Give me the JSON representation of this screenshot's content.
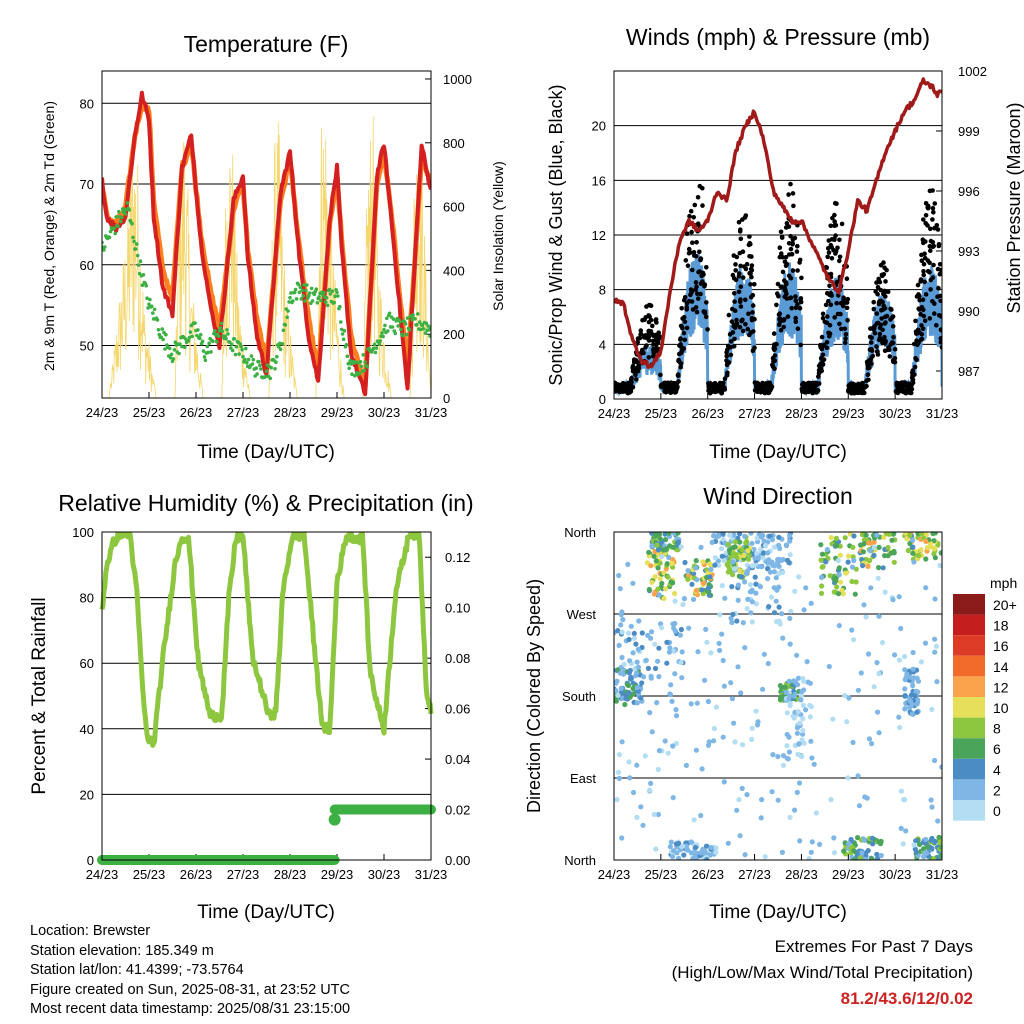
{
  "chart_data": [
    {
      "type": "line",
      "title": "Temperature (F)",
      "xlabel": "Time (Day/UTC)",
      "ylabel": "2m & 9m T (Red, Orange) & 2m Td (Green)",
      "y2label": "Solar Insolation (Yellow)",
      "x_ticks": [
        "24/23",
        "25/23",
        "26/23",
        "27/23",
        "28/23",
        "29/23",
        "30/23",
        "31/23"
      ],
      "xlim": [
        0,
        7
      ],
      "ylim": [
        43.5,
        84
      ],
      "y_ticks": [
        50,
        60,
        70,
        80
      ],
      "y2lim": [
        0,
        1025
      ],
      "y2_ticks": [
        0,
        200,
        400,
        600,
        800,
        1000
      ],
      "grid": "horizontal",
      "series": [
        {
          "key": "t9m",
          "color": "#ff7f1e",
          "x": [
            0,
            0.1,
            0.3,
            0.5,
            0.7,
            0.85,
            1.0,
            1.1,
            1.3,
            1.5,
            1.7,
            1.9,
            2.1,
            2.3,
            2.5,
            2.8,
            3.0,
            3.1,
            3.3,
            3.5,
            3.8,
            4.0,
            4.2,
            4.4,
            4.6,
            4.85,
            5.0,
            5.1,
            5.3,
            5.6,
            5.85,
            6.0,
            6.2,
            6.5,
            6.8,
            7.0
          ],
          "y": [
            70,
            66,
            65,
            67,
            76,
            80,
            79,
            68,
            59,
            56,
            72,
            75,
            64,
            57,
            52,
            67,
            70,
            62,
            53,
            48,
            68,
            73,
            62,
            53,
            47,
            65,
            71,
            63,
            51,
            45,
            70,
            74,
            64,
            47,
            73,
            70
          ]
        },
        {
          "key": "t2m",
          "color": "#d42020",
          "x": [
            0,
            0.1,
            0.3,
            0.5,
            0.7,
            0.85,
            1.0,
            1.1,
            1.3,
            1.5,
            1.7,
            1.9,
            2.1,
            2.3,
            2.5,
            2.8,
            3.0,
            3.1,
            3.3,
            3.5,
            3.8,
            4.0,
            4.2,
            4.4,
            4.6,
            4.85,
            5.0,
            5.1,
            5.3,
            5.6,
            5.85,
            6.0,
            6.2,
            6.5,
            6.8,
            7.0
          ],
          "y": [
            70.5,
            66,
            64.5,
            66,
            76,
            81,
            78,
            66,
            57,
            54,
            72,
            76,
            63,
            55,
            50,
            68,
            71,
            61,
            51,
            46.5,
            69,
            74,
            61,
            51,
            45.5,
            66,
            72,
            62,
            49,
            44,
            71,
            75,
            63,
            44.5,
            75,
            69
          ]
        },
        {
          "key": "td2m",
          "color": "#3cb043",
          "x": [
            0,
            0.2,
            0.4,
            0.55,
            0.8,
            1.0,
            1.1,
            1.3,
            1.5,
            1.8,
            2.0,
            2.2,
            2.5,
            2.8,
            3.0,
            3.3,
            3.6,
            3.8,
            4.0,
            4.2,
            4.5,
            4.8,
            5.0,
            5.3,
            5.6,
            5.9,
            6.1,
            6.4,
            6.7,
            7.0
          ],
          "y": [
            62,
            64,
            66,
            67,
            60,
            55,
            54,
            51,
            49,
            51,
            52,
            49,
            52,
            50,
            49,
            47,
            47,
            50,
            56,
            57,
            56,
            56,
            56,
            47,
            48,
            51,
            53,
            52,
            53,
            52
          ]
        },
        {
          "key": "solar",
          "color": "#f5d76e",
          "axis": "y2",
          "x": [
            0,
            0.15,
            0.55,
            0.65,
            0.75,
            0.9,
            1.15,
            1.55,
            1.65,
            1.75,
            1.9,
            2.15,
            2.55,
            2.65,
            2.75,
            2.9,
            3.15,
            3.55,
            3.65,
            3.75,
            3.9,
            4.15,
            4.55,
            4.65,
            4.75,
            4.9,
            5.15,
            5.55,
            5.65,
            5.75,
            5.9,
            6.15,
            6.55,
            6.65,
            6.75,
            6.9,
            7.0
          ],
          "y": [
            0,
            0,
            600,
            950,
            800,
            300,
            0,
            0,
            750,
            950,
            400,
            0,
            0,
            820,
            930,
            350,
            0,
            0,
            780,
            900,
            380,
            0,
            0,
            900,
            1000,
            500,
            0,
            0,
            750,
            960,
            420,
            0,
            0,
            820,
            940,
            400,
            0
          ]
        }
      ]
    },
    {
      "type": "line",
      "title": "Winds (mph) & Pressure (mb)",
      "xlabel": "Time (Day/UTC)",
      "ylabel": "Sonic/Prop Wind & Gust (Blue, Black)",
      "y2label": "Station Pressure (Maroon)",
      "x_ticks": [
        "24/23",
        "25/23",
        "26/23",
        "27/23",
        "28/23",
        "29/23",
        "30/23",
        "31/23"
      ],
      "xlim": [
        0,
        7
      ],
      "ylim": [
        0,
        24
      ],
      "y_ticks": [
        0,
        4,
        8,
        12,
        16,
        20
      ],
      "y2lim": [
        985.6,
        1002
      ],
      "y2_ticks": [
        987,
        990,
        993,
        996,
        999,
        1002
      ],
      "grid": "horizontal",
      "wind_daily_peak": [
        4,
        11,
        10,
        10,
        9,
        8,
        10,
        10
      ],
      "gust_daily_peak": [
        7,
        18,
        14,
        16,
        15,
        10,
        16,
        15
      ],
      "series": [
        {
          "key": "pressure",
          "color": "#a01a1a",
          "axis": "y2",
          "x": [
            0,
            0.2,
            0.4,
            0.6,
            0.8,
            1.0,
            1.2,
            1.4,
            1.6,
            1.8,
            2.0,
            2.2,
            2.4,
            2.6,
            2.8,
            3.0,
            3.2,
            3.4,
            3.6,
            3.8,
            4.0,
            4.2,
            4.4,
            4.6,
            4.8,
            5.0,
            5.2,
            5.4,
            5.6,
            5.8,
            6.0,
            6.2,
            6.4,
            6.6,
            6.8,
            6.9,
            7.0
          ],
          "y": [
            990.5,
            990.4,
            988.5,
            987.5,
            987.2,
            988,
            991,
            993.5,
            994.5,
            994,
            994.5,
            996,
            995.5,
            998,
            999.2,
            1000,
            998.5,
            996,
            995.2,
            994.5,
            994.5,
            993.5,
            992.5,
            991.5,
            991,
            993,
            995.5,
            995,
            996.5,
            998,
            999,
            1000,
            1000.5,
            1001.5,
            1001.2,
            1000.8,
            1001
          ]
        }
      ]
    },
    {
      "type": "line",
      "title": "Relative Humidity (%) & Precipitation (in)",
      "xlabel": "Time (Day/UTC)",
      "ylabel": "Percent & Total Rainfall",
      "x_ticks": [
        "24/23",
        "25/23",
        "26/23",
        "27/23",
        "28/23",
        "29/23",
        "30/23",
        "31/23"
      ],
      "xlim": [
        0,
        7
      ],
      "ylim": [
        0,
        100
      ],
      "y_ticks": [
        0,
        20,
        40,
        60,
        80,
        100
      ],
      "y2lim": [
        0,
        0.13
      ],
      "y2_ticks": [
        "0.00",
        "0.02",
        "0.04",
        "0.06",
        "0.08",
        "0.10",
        "0.12"
      ],
      "grid": "horizontal",
      "series": [
        {
          "key": "rh",
          "color": "#8dc63f",
          "x": [
            0,
            0.1,
            0.25,
            0.4,
            0.6,
            0.75,
            0.85,
            0.95,
            1.1,
            1.3,
            1.55,
            1.7,
            1.85,
            2.05,
            2.3,
            2.55,
            2.7,
            2.85,
            3.0,
            3.2,
            3.55,
            3.7,
            3.85,
            4.05,
            4.3,
            4.55,
            4.7,
            4.85,
            5.0,
            5.2,
            5.55,
            5.7,
            5.85,
            6.0,
            6.25,
            6.55,
            6.75,
            6.9,
            7.0
          ],
          "y": [
            76,
            90,
            97,
            100,
            99,
            80,
            55,
            38,
            35,
            62,
            90,
            99,
            97,
            60,
            44,
            44,
            80,
            98,
            99,
            62,
            44,
            45,
            82,
            99,
            99,
            60,
            40,
            40,
            85,
            99,
            98,
            58,
            48,
            40,
            82,
            100,
            99,
            52,
            46
          ]
        },
        {
          "key": "precip",
          "color": "#3cb043",
          "axis": "y2",
          "x": [
            0,
            4.95,
            4.96,
            7.0
          ],
          "y": [
            0,
            0,
            0.02,
            0.02
          ]
        }
      ]
    },
    {
      "type": "scatter",
      "title": "Wind Direction",
      "xlabel": "Time (Day/UTC)",
      "ylabel": "Direction (Colored By Speed)",
      "x_ticks": [
        "24/23",
        "25/23",
        "26/23",
        "27/23",
        "28/23",
        "29/23",
        "30/23",
        "31/23"
      ],
      "xlim": [
        0,
        7
      ],
      "ylim": [
        0,
        360
      ],
      "y_ticks": [
        "North",
        "East",
        "South",
        "West",
        "North"
      ],
      "colorbar": {
        "unit": "mph",
        "labels": [
          "20+",
          "18",
          "16",
          "14",
          "12",
          "10",
          "8",
          "6",
          "4",
          "2",
          "0"
        ],
        "colors": [
          "#8b1a1a",
          "#c41e1e",
          "#de3b26",
          "#f26b2b",
          "#fba24d",
          "#e6df5a",
          "#8dc63f",
          "#4aa55a",
          "#4c8cc4",
          "#7eb6e6",
          "#b3ddf3"
        ]
      },
      "clusters": [
        {
          "x": [
            0.0,
            0.6
          ],
          "dir": [
            170,
            210
          ],
          "speed": [
            2,
            6
          ]
        },
        {
          "x": [
            0.7,
            1.3
          ],
          "dir": [
            285,
            340
          ],
          "speed": [
            4,
            12
          ]
        },
        {
          "x": [
            0.8,
            1.4
          ],
          "dir": [
            340,
            360
          ],
          "speed": [
            2,
            8
          ]
        },
        {
          "x": [
            1.5,
            2.1
          ],
          "dir": [
            290,
            330
          ],
          "speed": [
            4,
            12
          ]
        },
        {
          "x": [
            2.1,
            3.0
          ],
          "dir": [
            320,
            360
          ],
          "speed": [
            0,
            4
          ]
        },
        {
          "x": [
            2.4,
            2.9
          ],
          "dir": [
            310,
            355
          ],
          "speed": [
            6,
            10
          ]
        },
        {
          "x": [
            3.0,
            3.8
          ],
          "dir": [
            320,
            360
          ],
          "speed": [
            0,
            4
          ]
        },
        {
          "x": [
            3.55,
            3.95
          ],
          "dir": [
            175,
            195
          ],
          "speed": [
            4,
            8
          ]
        },
        {
          "x": [
            4.4,
            5.2
          ],
          "dir": [
            290,
            360
          ],
          "speed": [
            4,
            10
          ]
        },
        {
          "x": [
            5.2,
            6.0
          ],
          "dir": [
            320,
            360
          ],
          "speed": [
            4,
            12
          ]
        },
        {
          "x": [
            6.2,
            7.0
          ],
          "dir": [
            330,
            360
          ],
          "speed": [
            4,
            12
          ]
        },
        {
          "x": [
            3.6,
            4.2
          ],
          "dir": [
            110,
            200
          ],
          "speed": [
            0,
            2
          ]
        },
        {
          "x": [
            0.0,
            1.5
          ],
          "dir": [
            200,
            260
          ],
          "speed": [
            0,
            4
          ]
        },
        {
          "x": [
            4.9,
            5.7
          ],
          "dir": [
            0,
            25
          ],
          "speed": [
            2,
            8
          ]
        },
        {
          "x": [
            6.4,
            7.0
          ],
          "dir": [
            0,
            25
          ],
          "speed": [
            2,
            8
          ]
        },
        {
          "x": [
            1.2,
            2.2
          ],
          "dir": [
            0,
            20
          ],
          "speed": [
            0,
            4
          ]
        },
        {
          "x": [
            2.5,
            3.6
          ],
          "dir": [
            260,
            330
          ],
          "speed": [
            0,
            4
          ]
        },
        {
          "x": [
            6.2,
            6.5
          ],
          "dir": [
            160,
            210
          ],
          "speed": [
            2,
            4
          ]
        }
      ]
    }
  ],
  "info": {
    "location": "Location: Brewster",
    "elevation": "Station elevation: 185.349 m",
    "latlon": "Station lat/lon: 41.4399; -73.5764",
    "created": "Figure created on Sun, 2025-08-31, at 23:52 UTC",
    "recent": "Most recent data timestamp: 2025/08/31 23:15:00"
  },
  "extremes": {
    "title": "Extremes For Past 7 Days",
    "subtitle": "(High/Low/Max Wind/Total Precipitation)",
    "values": "81.2/43.6/12/0.02"
  }
}
